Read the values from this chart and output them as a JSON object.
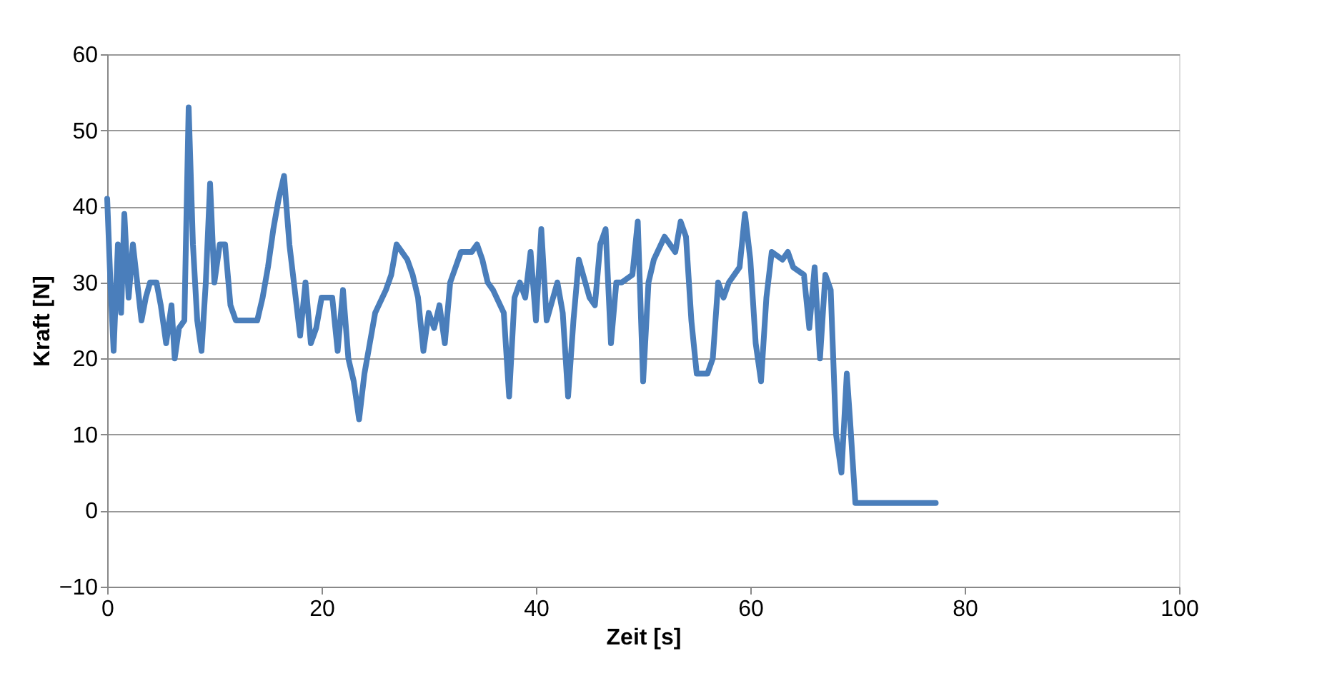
{
  "chart_data": {
    "type": "line",
    "xlabel": "Zeit [s]",
    "ylabel": "Kraft [N]",
    "xlim": [
      0,
      100
    ],
    "xticks": [
      0,
      20,
      40,
      60,
      80,
      100
    ],
    "ylim": [
      -10,
      60
    ],
    "yticks": [
      -10,
      0,
      10,
      20,
      30,
      40,
      50,
      60
    ],
    "grid": "y",
    "marker": "none",
    "line_style": "solid",
    "series": [
      {
        "color": "#4a7ebb",
        "x": [
          0,
          0.3,
          0.6,
          1,
          1.3,
          1.6,
          2,
          2.4,
          2.8,
          3.2,
          3.6,
          4,
          4.6,
          5,
          5.5,
          6,
          6.3,
          6.7,
          7.2,
          7.6,
          8,
          8.4,
          8.8,
          9.2,
          9.6,
          10,
          10.5,
          11,
          11.5,
          12,
          13,
          14,
          14.5,
          15,
          15.5,
          16,
          16.5,
          17,
          17.5,
          18,
          18.5,
          19,
          19.5,
          20,
          21,
          21.5,
          22,
          22.5,
          23,
          23.5,
          24,
          25,
          26,
          26.5,
          27,
          27.5,
          28,
          28.5,
          29,
          29.5,
          30,
          30.5,
          31,
          31.5,
          32,
          33,
          34,
          34.5,
          35,
          35.5,
          36,
          37,
          37.5,
          38,
          38.5,
          39,
          39.5,
          40,
          40.5,
          41,
          42,
          42.5,
          43,
          43.5,
          44,
          45,
          45.5,
          46,
          46.5,
          47,
          47.5,
          48,
          49,
          49.5,
          50,
          50.5,
          51,
          52,
          53,
          53.5,
          54,
          54.5,
          55,
          56,
          56.5,
          57,
          57.5,
          58,
          59,
          59.5,
          60,
          60.5,
          61,
          61.5,
          62,
          63,
          63.5,
          64,
          65,
          65.5,
          66,
          66.5,
          67,
          67.5,
          68,
          68.5,
          69,
          69.3,
          69.8,
          77.3
        ],
        "values": [
          41,
          30,
          21,
          35,
          26,
          39,
          28,
          35,
          30,
          25,
          28,
          30,
          30,
          27,
          22,
          27,
          20,
          24,
          25,
          53,
          35,
          25,
          21,
          30,
          43,
          30,
          35,
          35,
          27,
          25,
          25,
          25,
          28,
          32,
          37,
          41,
          44,
          35,
          29,
          23,
          30,
          22,
          24,
          28,
          28,
          21,
          29,
          20,
          17,
          12,
          18,
          26,
          29,
          31,
          35,
          34,
          33,
          31,
          28,
          21,
          26,
          24,
          27,
          22,
          30,
          34,
          34,
          35,
          33,
          30,
          29,
          26,
          15,
          28,
          30,
          28,
          34,
          25,
          37,
          25,
          30,
          26,
          15,
          25,
          33,
          28,
          27,
          35,
          37,
          22,
          30,
          30,
          31,
          38,
          17,
          30,
          33,
          36,
          34,
          38,
          36,
          25,
          18,
          18,
          20,
          30,
          28,
          30,
          32,
          39,
          33,
          22,
          17,
          28,
          34,
          33,
          34,
          32,
          31,
          24,
          32,
          20,
          31,
          29,
          10,
          5,
          18,
          12,
          1,
          1
        ]
      }
    ]
  }
}
